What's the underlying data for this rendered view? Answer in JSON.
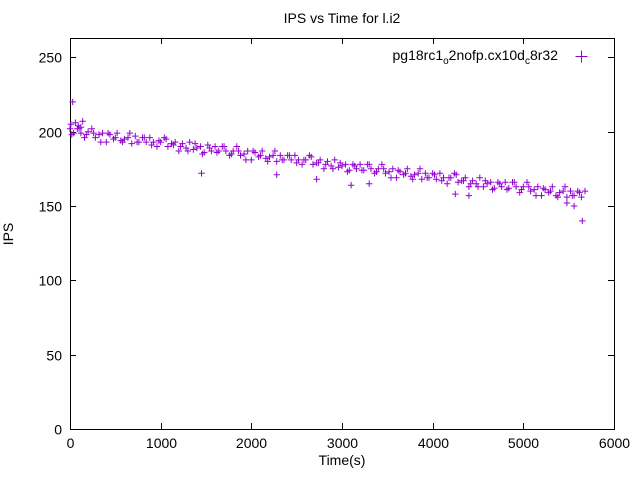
{
  "figure": {
    "title": "IPS vs Time for l.i2",
    "xlabel": "Time(s)",
    "ylabel": "IPS"
  },
  "legend": {
    "parts": [
      "pg18rc1",
      "o",
      "2nofp.cx10d",
      "c",
      "8r32"
    ],
    "marker": "plus",
    "color": "#9400D3"
  },
  "chart_data": {
    "type": "scatter",
    "title": "IPS vs Time for l.i2",
    "xlabel": "Time(s)",
    "ylabel": "IPS",
    "xlim": [
      0,
      6000
    ],
    "ylim": [
      0,
      263
    ],
    "xticks": [
      0,
      1000,
      2000,
      3000,
      4000,
      5000,
      6000
    ],
    "yticks": [
      0,
      50,
      100,
      150,
      200,
      250
    ],
    "grid": false,
    "legend_position": "top-right-inside",
    "series": [
      {
        "name": "pg18rc1_o2nofp.cx10d_c8r32",
        "marker": "plus",
        "color": "#9400D3",
        "points": [
          [
            0,
            202
          ],
          [
            40,
            199
          ],
          [
            80,
            202
          ],
          [
            120,
            199
          ],
          [
            160,
            196
          ],
          [
            200,
            200
          ],
          [
            240,
            202
          ],
          [
            280,
            196
          ],
          [
            320,
            198
          ],
          [
            360,
            199
          ],
          [
            400,
            193
          ],
          [
            440,
            198
          ],
          [
            480,
            195
          ],
          [
            520,
            199
          ],
          [
            560,
            194
          ],
          [
            600,
            195
          ],
          [
            640,
            196
          ],
          [
            680,
            192
          ],
          [
            720,
            197
          ],
          [
            760,
            193
          ],
          [
            800,
            196
          ],
          [
            840,
            193
          ],
          [
            880,
            196
          ],
          [
            920,
            193
          ],
          [
            960,
            190
          ],
          [
            1000,
            193
          ],
          [
            1040,
            196
          ],
          [
            1080,
            190
          ],
          [
            1120,
            192
          ],
          [
            1160,
            193
          ],
          [
            1200,
            187
          ],
          [
            1240,
            192
          ],
          [
            1280,
            189
          ],
          [
            1320,
            193
          ],
          [
            1360,
            188
          ],
          [
            1400,
            189
          ],
          [
            1440,
            190
          ],
          [
            1480,
            186
          ],
          [
            1520,
            191
          ],
          [
            1560,
            187
          ],
          [
            1600,
            190
          ],
          [
            1640,
            187
          ],
          [
            1680,
            190
          ],
          [
            1720,
            187
          ],
          [
            1760,
            184
          ],
          [
            1800,
            187
          ],
          [
            1840,
            190
          ],
          [
            1880,
            184
          ],
          [
            1920,
            185
          ],
          [
            1960,
            187
          ],
          [
            2000,
            181
          ],
          [
            2040,
            186
          ],
          [
            2080,
            183
          ],
          [
            2120,
            187
          ],
          [
            2160,
            182
          ],
          [
            2200,
            183
          ],
          [
            2240,
            184
          ],
          [
            2280,
            180
          ],
          [
            2320,
            184
          ],
          [
            2360,
            181
          ],
          [
            2400,
            184
          ],
          [
            2440,
            181
          ],
          [
            2480,
            184
          ],
          [
            2520,
            181
          ],
          [
            2560,
            178
          ],
          [
            2600,
            181
          ],
          [
            2640,
            184
          ],
          [
            2680,
            178
          ],
          [
            2720,
            179
          ],
          [
            2760,
            181
          ],
          [
            2800,
            175
          ],
          [
            2840,
            180
          ],
          [
            2880,
            177
          ],
          [
            2920,
            181
          ],
          [
            2960,
            176
          ],
          [
            3000,
            177
          ],
          [
            3040,
            178
          ],
          [
            3080,
            174
          ],
          [
            3120,
            178
          ],
          [
            3160,
            175
          ],
          [
            3200,
            178
          ],
          [
            3240,
            174
          ],
          [
            3280,
            178
          ],
          [
            3320,
            175
          ],
          [
            3360,
            172
          ],
          [
            3400,
            175
          ],
          [
            3440,
            178
          ],
          [
            3480,
            172
          ],
          [
            3520,
            173
          ],
          [
            3560,
            175
          ],
          [
            3600,
            169
          ],
          [
            3640,
            173
          ],
          [
            3680,
            171
          ],
          [
            3720,
            175
          ],
          [
            3760,
            170
          ],
          [
            3800,
            171
          ],
          [
            3840,
            172
          ],
          [
            3880,
            168
          ],
          [
            3920,
            172
          ],
          [
            3960,
            169
          ],
          [
            4000,
            172
          ],
          [
            4040,
            168
          ],
          [
            4080,
            172
          ],
          [
            4120,
            169
          ],
          [
            4160,
            165
          ],
          [
            4200,
            169
          ],
          [
            4240,
            172
          ],
          [
            4280,
            166
          ],
          [
            4320,
            167
          ],
          [
            4360,
            169
          ],
          [
            4400,
            163
          ],
          [
            4440,
            167
          ],
          [
            4480,
            165
          ],
          [
            4520,
            169
          ],
          [
            4560,
            163
          ],
          [
            4600,
            165
          ],
          [
            4640,
            166
          ],
          [
            4680,
            162
          ],
          [
            4720,
            166
          ],
          [
            4760,
            163
          ],
          [
            4800,
            166
          ],
          [
            4840,
            162
          ],
          [
            4880,
            166
          ],
          [
            4920,
            163
          ],
          [
            4960,
            159
          ],
          [
            5000,
            163
          ],
          [
            5040,
            166
          ],
          [
            5080,
            160
          ],
          [
            5120,
            161
          ],
          [
            5160,
            163
          ],
          [
            5200,
            157
          ],
          [
            5240,
            161
          ],
          [
            5280,
            159
          ],
          [
            5320,
            163
          ],
          [
            5360,
            157
          ],
          [
            5400,
            159
          ],
          [
            5440,
            160
          ],
          [
            5480,
            156
          ],
          [
            5520,
            160
          ],
          [
            5560,
            157
          ],
          [
            5600,
            160
          ],
          [
            5640,
            156
          ],
          [
            5680,
            160
          ],
          [
            20,
            198
          ],
          [
            100,
            202
          ],
          [
            180,
            198
          ],
          [
            260,
            199
          ],
          [
            340,
            193
          ],
          [
            420,
            199
          ],
          [
            500,
            196
          ],
          [
            580,
            193
          ],
          [
            660,
            199
          ],
          [
            740,
            193
          ],
          [
            820,
            196
          ],
          [
            900,
            191
          ],
          [
            980,
            194
          ],
          [
            1060,
            195
          ],
          [
            1140,
            191
          ],
          [
            1220,
            190
          ],
          [
            1300,
            187
          ],
          [
            1380,
            192
          ],
          [
            1460,
            185
          ],
          [
            1540,
            189
          ],
          [
            1620,
            186
          ],
          [
            1700,
            190
          ],
          [
            1780,
            185
          ],
          [
            1860,
            187
          ],
          [
            1940,
            181
          ],
          [
            2020,
            187
          ],
          [
            2100,
            184
          ],
          [
            2180,
            180
          ],
          [
            2260,
            187
          ],
          [
            2340,
            181
          ],
          [
            2420,
            184
          ],
          [
            2500,
            179
          ],
          [
            2580,
            181
          ],
          [
            2660,
            183
          ],
          [
            2740,
            179
          ],
          [
            2820,
            178
          ],
          [
            2900,
            175
          ],
          [
            2980,
            179
          ],
          [
            3060,
            173
          ],
          [
            3140,
            177
          ],
          [
            3220,
            174
          ],
          [
            3300,
            178
          ],
          [
            3380,
            173
          ],
          [
            3460,
            175
          ],
          [
            3540,
            169
          ],
          [
            3620,
            174
          ],
          [
            3700,
            172
          ],
          [
            3780,
            168
          ],
          [
            3860,
            175
          ],
          [
            3940,
            169
          ],
          [
            4020,
            171
          ],
          [
            4100,
            167
          ],
          [
            4180,
            169
          ],
          [
            4260,
            171
          ],
          [
            4340,
            167
          ],
          [
            4420,
            165
          ],
          [
            4500,
            163
          ],
          [
            4580,
            167
          ],
          [
            4660,
            161
          ],
          [
            4740,
            165
          ],
          [
            4820,
            161
          ],
          [
            4900,
            166
          ],
          [
            4980,
            161
          ],
          [
            5060,
            163
          ],
          [
            5140,
            157
          ],
          [
            5220,
            162
          ],
          [
            5300,
            160
          ],
          [
            5380,
            156
          ],
          [
            5460,
            163
          ],
          [
            5540,
            157
          ],
          [
            5620,
            159
          ],
          [
            10,
            205
          ],
          [
            30,
            220
          ],
          [
            60,
            206
          ],
          [
            90,
            204
          ],
          [
            120,
            203
          ],
          [
            140,
            207
          ],
          [
            1450,
            172
          ],
          [
            2280,
            171
          ],
          [
            2720,
            168
          ],
          [
            3100,
            164
          ],
          [
            3300,
            165
          ],
          [
            4250,
            158
          ],
          [
            4400,
            157
          ],
          [
            5480,
            152
          ],
          [
            5560,
            150
          ],
          [
            5650,
            140
          ]
        ]
      }
    ]
  }
}
